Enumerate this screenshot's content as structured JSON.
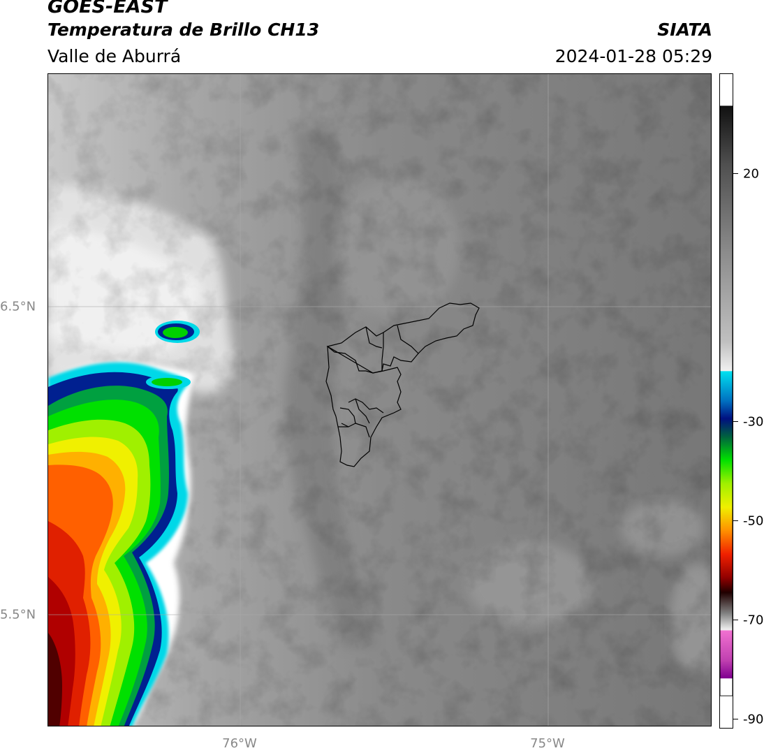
{
  "header": {
    "satellite": "GOES-EAST",
    "product": "Temperatura de Brillo CH13",
    "region": "Valle de Aburrá",
    "organization": "SIATA",
    "datetime": "2024-01-28 05:29"
  },
  "map": {
    "lat_gridlines": [
      "6.5°N",
      "5.5°N"
    ],
    "lon_gridlines": [
      "76°W",
      "75°W"
    ],
    "boundary_outline": "Valle de Aburrá municipalities"
  },
  "colorbar": {
    "tick_labels": [
      "20",
      "-30",
      "-50",
      "-70",
      "-90"
    ],
    "colors": {
      "warm_gray": "#6e6e6e",
      "light_gray": "#f0f0f0",
      "cyan": "#00d8e8",
      "navy": "#002090",
      "green": "#00d000",
      "yellow": "#f0f000",
      "orange": "#ff8000",
      "red": "#e00000",
      "dark_red": "#600000",
      "pink": "#f070d0",
      "purple": "#800090"
    }
  }
}
